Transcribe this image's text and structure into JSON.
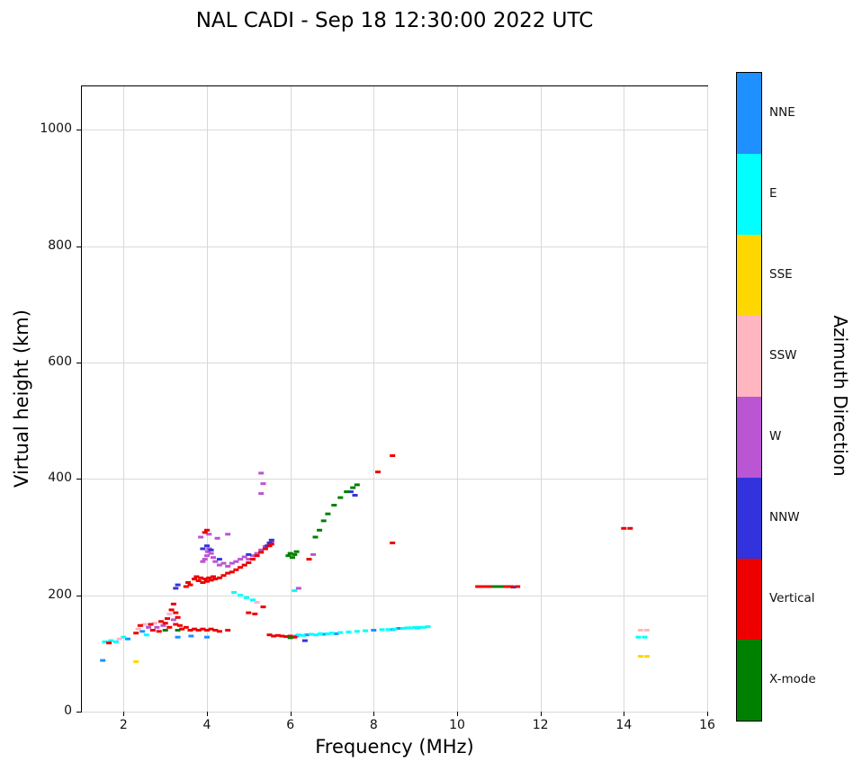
{
  "chart_data": {
    "type": "scatter",
    "title": "NAL CADI - Sep 18 12:30:00 2022 UTC",
    "xlabel": "Frequency (MHz)",
    "ylabel": "Virtual height (km)",
    "xlim": [
      1,
      16
    ],
    "ylim": [
      0,
      1075
    ],
    "x_ticks": [
      2,
      4,
      6,
      8,
      10,
      12,
      14,
      16
    ],
    "y_ticks": [
      0,
      200,
      400,
      600,
      800,
      1000
    ],
    "grid": true,
    "marker": {
      "width": 6,
      "height": 3
    },
    "colorbar_label": "Azimuth Direction",
    "categories": [
      {
        "label": "NNE",
        "color": "#1E90FF"
      },
      {
        "label": "E",
        "color": "#00FFFF"
      },
      {
        "label": "SSE",
        "color": "#FFD700"
      },
      {
        "label": "SSW",
        "color": "#FFB6C1"
      },
      {
        "label": "W",
        "color": "#BA55D3"
      },
      {
        "label": "NNW",
        "color": "#3333DD"
      },
      {
        "label": "Vertical",
        "color": "#EE0000"
      },
      {
        "label": "X-mode",
        "color": "#008000"
      }
    ],
    "series": [
      {
        "name": "NNE",
        "color": "#1E90FF",
        "points": [
          [
            1.5,
            88
          ],
          [
            2.1,
            125
          ],
          [
            2.45,
            138
          ],
          [
            3.3,
            128
          ],
          [
            3.62,
            130
          ],
          [
            4.0,
            128
          ],
          [
            6.15,
            130
          ],
          [
            6.4,
            132
          ],
          [
            6.8,
            133
          ],
          [
            7.1,
            134
          ],
          [
            8.0,
            140
          ],
          [
            8.45,
            141
          ],
          [
            8.6,
            143
          ],
          [
            9.05,
            144
          ]
        ]
      },
      {
        "name": "E",
        "color": "#00FFFF",
        "points": [
          [
            1.55,
            120
          ],
          [
            1.7,
            122
          ],
          [
            1.82,
            120
          ],
          [
            2.0,
            128
          ],
          [
            2.55,
            132
          ],
          [
            4.65,
            205
          ],
          [
            4.8,
            200
          ],
          [
            4.95,
            196
          ],
          [
            5.1,
            192
          ],
          [
            6.1,
            208
          ],
          [
            6.2,
            132
          ],
          [
            6.3,
            131
          ],
          [
            6.5,
            133
          ],
          [
            6.62,
            132
          ],
          [
            6.72,
            134
          ],
          [
            6.9,
            134
          ],
          [
            7.0,
            135
          ],
          [
            7.2,
            136
          ],
          [
            7.4,
            137
          ],
          [
            7.6,
            138
          ],
          [
            7.8,
            139
          ],
          [
            8.2,
            141
          ],
          [
            8.35,
            141
          ],
          [
            8.5,
            142
          ],
          [
            8.7,
            143
          ],
          [
            8.8,
            144
          ],
          [
            8.9,
            144
          ],
          [
            9.0,
            145
          ],
          [
            9.1,
            145
          ],
          [
            9.2,
            145
          ],
          [
            9.3,
            146
          ],
          [
            14.35,
            128
          ],
          [
            14.5,
            128
          ]
        ]
      },
      {
        "name": "SSE",
        "color": "#FFD700",
        "points": [
          [
            2.3,
            86
          ],
          [
            14.4,
            95
          ],
          [
            14.55,
            95
          ]
        ]
      },
      {
        "name": "SSW",
        "color": "#FFB6C1",
        "points": [
          [
            1.9,
            125
          ],
          [
            2.35,
            142
          ],
          [
            2.5,
            150
          ],
          [
            2.75,
            152
          ],
          [
            3.1,
            168
          ],
          [
            5.2,
            188
          ],
          [
            14.4,
            140
          ],
          [
            14.55,
            140
          ]
        ]
      },
      {
        "name": "W",
        "color": "#BA55D3",
        "points": [
          [
            2.6,
            145
          ],
          [
            2.8,
            145
          ],
          [
            2.95,
            148
          ],
          [
            3.2,
            158
          ],
          [
            3.85,
            300
          ],
          [
            3.9,
            258
          ],
          [
            3.95,
            262
          ],
          [
            4.0,
            268
          ],
          [
            4.02,
            275
          ],
          [
            4.05,
            280
          ],
          [
            4.05,
            305
          ],
          [
            4.1,
            272
          ],
          [
            4.15,
            265
          ],
          [
            4.2,
            258
          ],
          [
            4.25,
            298
          ],
          [
            4.3,
            252
          ],
          [
            4.4,
            255
          ],
          [
            4.5,
            250
          ],
          [
            4.5,
            305
          ],
          [
            4.6,
            255
          ],
          [
            4.7,
            258
          ],
          [
            4.8,
            262
          ],
          [
            4.9,
            266
          ],
          [
            5.0,
            262
          ],
          [
            5.1,
            268
          ],
          [
            5.2,
            272
          ],
          [
            5.3,
            278
          ],
          [
            5.3,
            375
          ],
          [
            5.3,
            410
          ],
          [
            5.35,
            392
          ],
          [
            5.4,
            284
          ],
          [
            5.5,
            288
          ],
          [
            5.55,
            292
          ],
          [
            6.2,
            212
          ],
          [
            6.55,
            270
          ]
        ]
      },
      {
        "name": "NNW",
        "color": "#3333DD",
        "points": [
          [
            3.25,
            212
          ],
          [
            3.3,
            218
          ],
          [
            3.9,
            280
          ],
          [
            4.0,
            285
          ],
          [
            4.1,
            278
          ],
          [
            4.3,
            262
          ],
          [
            5.0,
            270
          ],
          [
            5.45,
            285
          ],
          [
            5.5,
            290
          ],
          [
            5.55,
            295
          ],
          [
            6.35,
            122
          ],
          [
            7.45,
            378
          ],
          [
            7.55,
            372
          ],
          [
            11.35,
            214
          ]
        ]
      },
      {
        "name": "Vertical",
        "color": "#EE0000",
        "points": [
          [
            1.65,
            118
          ],
          [
            2.3,
            135
          ],
          [
            2.4,
            148
          ],
          [
            2.65,
            150
          ],
          [
            2.7,
            140
          ],
          [
            2.85,
            138
          ],
          [
            2.9,
            155
          ],
          [
            3.0,
            152
          ],
          [
            3.05,
            160
          ],
          [
            3.1,
            145
          ],
          [
            3.15,
            175
          ],
          [
            3.2,
            185
          ],
          [
            3.25,
            150
          ],
          [
            3.25,
            170
          ],
          [
            3.3,
            162
          ],
          [
            3.35,
            148
          ],
          [
            3.4,
            142
          ],
          [
            3.5,
            145
          ],
          [
            3.6,
            140
          ],
          [
            3.7,
            142
          ],
          [
            3.8,
            140
          ],
          [
            3.9,
            142
          ],
          [
            4.0,
            140
          ],
          [
            4.1,
            142
          ],
          [
            4.2,
            140
          ],
          [
            4.3,
            138
          ],
          [
            4.5,
            140
          ],
          [
            3.5,
            215
          ],
          [
            3.55,
            222
          ],
          [
            3.6,
            218
          ],
          [
            3.7,
            228
          ],
          [
            3.75,
            232
          ],
          [
            3.8,
            225
          ],
          [
            3.85,
            230
          ],
          [
            3.9,
            222
          ],
          [
            3.95,
            228
          ],
          [
            4.0,
            224
          ],
          [
            4.05,
            230
          ],
          [
            4.1,
            226
          ],
          [
            4.15,
            232
          ],
          [
            4.2,
            228
          ],
          [
            4.3,
            230
          ],
          [
            4.4,
            234
          ],
          [
            4.5,
            238
          ],
          [
            4.6,
            240
          ],
          [
            4.7,
            244
          ],
          [
            4.8,
            248
          ],
          [
            4.9,
            252
          ],
          [
            5.0,
            256
          ],
          [
            5.1,
            262
          ],
          [
            5.2,
            268
          ],
          [
            5.3,
            274
          ],
          [
            5.4,
            280
          ],
          [
            5.5,
            285
          ],
          [
            5.55,
            288
          ],
          [
            3.95,
            308
          ],
          [
            4.0,
            312
          ],
          [
            5.0,
            170
          ],
          [
            5.15,
            168
          ],
          [
            5.35,
            180
          ],
          [
            5.5,
            132
          ],
          [
            5.6,
            130
          ],
          [
            5.7,
            131
          ],
          [
            5.8,
            130
          ],
          [
            5.9,
            129
          ],
          [
            6.0,
            130
          ],
          [
            6.1,
            128
          ],
          [
            6.45,
            262
          ],
          [
            8.1,
            412
          ],
          [
            8.45,
            440
          ],
          [
            8.45,
            290
          ],
          [
            10.5,
            215
          ],
          [
            10.6,
            215
          ],
          [
            10.7,
            215
          ],
          [
            10.8,
            215
          ],
          [
            11.1,
            215
          ],
          [
            11.2,
            215
          ],
          [
            11.3,
            215
          ],
          [
            11.45,
            215
          ],
          [
            14.0,
            315
          ],
          [
            14.15,
            315
          ]
        ]
      },
      {
        "name": "X-mode",
        "color": "#008000",
        "points": [
          [
            3.0,
            140
          ],
          [
            3.3,
            140
          ],
          [
            5.95,
            268
          ],
          [
            6.0,
            272
          ],
          [
            6.05,
            265
          ],
          [
            6.1,
            270
          ],
          [
            6.15,
            275
          ],
          [
            6.0,
            127
          ],
          [
            6.6,
            300
          ],
          [
            6.7,
            312
          ],
          [
            6.8,
            328
          ],
          [
            6.9,
            340
          ],
          [
            7.05,
            355
          ],
          [
            7.2,
            368
          ],
          [
            7.35,
            378
          ],
          [
            7.5,
            385
          ],
          [
            7.6,
            390
          ],
          [
            10.9,
            215
          ],
          [
            10.95,
            215
          ],
          [
            11.0,
            215
          ],
          [
            11.05,
            215
          ]
        ]
      }
    ]
  }
}
